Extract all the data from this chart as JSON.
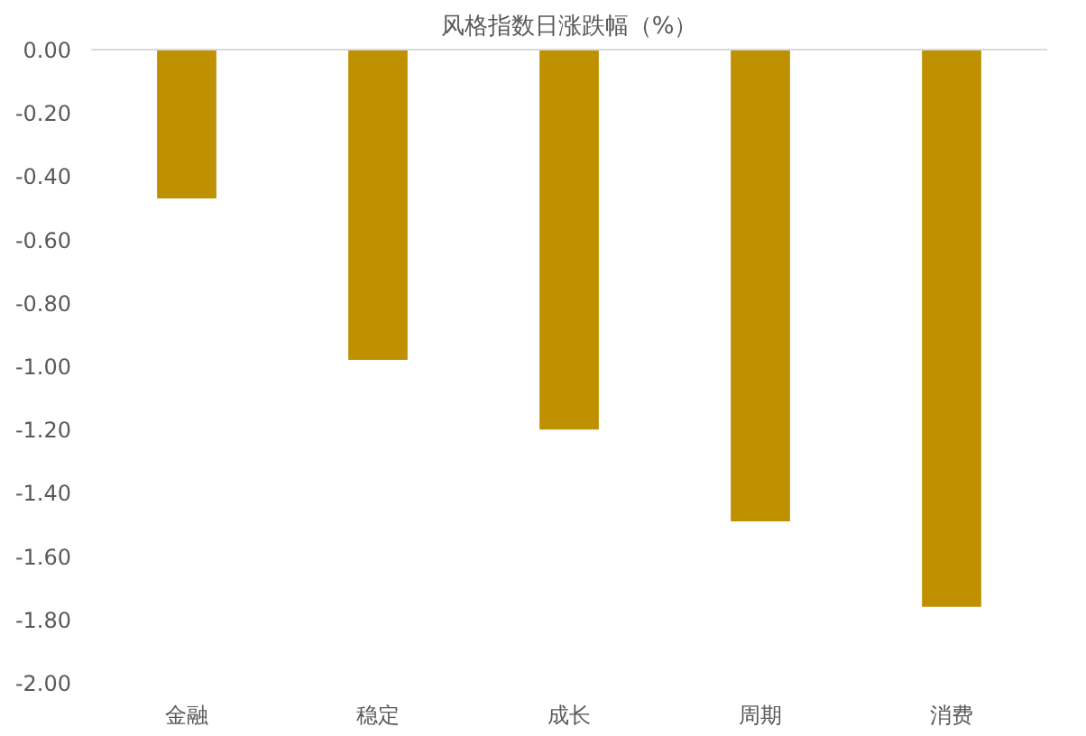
{
  "chart_data": {
    "type": "bar",
    "title": "风格指数日涨跌幅（%）",
    "categories": [
      "金融",
      "稳定",
      "成长",
      "周期",
      "消费"
    ],
    "values": [
      -0.47,
      -0.98,
      -1.2,
      -1.49,
      -1.76
    ],
    "color": "#bf9000",
    "ylim": [
      -2,
      0
    ],
    "yticks": [
      {
        "value": 0,
        "label": "0.00"
      },
      {
        "value": -0.2,
        "label": "-0.20"
      },
      {
        "value": -0.4,
        "label": "-0.40"
      },
      {
        "value": -0.6,
        "label": "-0.60"
      },
      {
        "value": -0.8,
        "label": "-0.80"
      },
      {
        "value": -1,
        "label": "-1.00"
      },
      {
        "value": -1.2,
        "label": "-1.20"
      },
      {
        "value": -1.4,
        "label": "-1.40"
      },
      {
        "value": -1.6,
        "label": "-1.60"
      },
      {
        "value": -1.8,
        "label": "-1.80"
      },
      {
        "value": -2,
        "label": "-2.00"
      }
    ],
    "grid": false
  }
}
